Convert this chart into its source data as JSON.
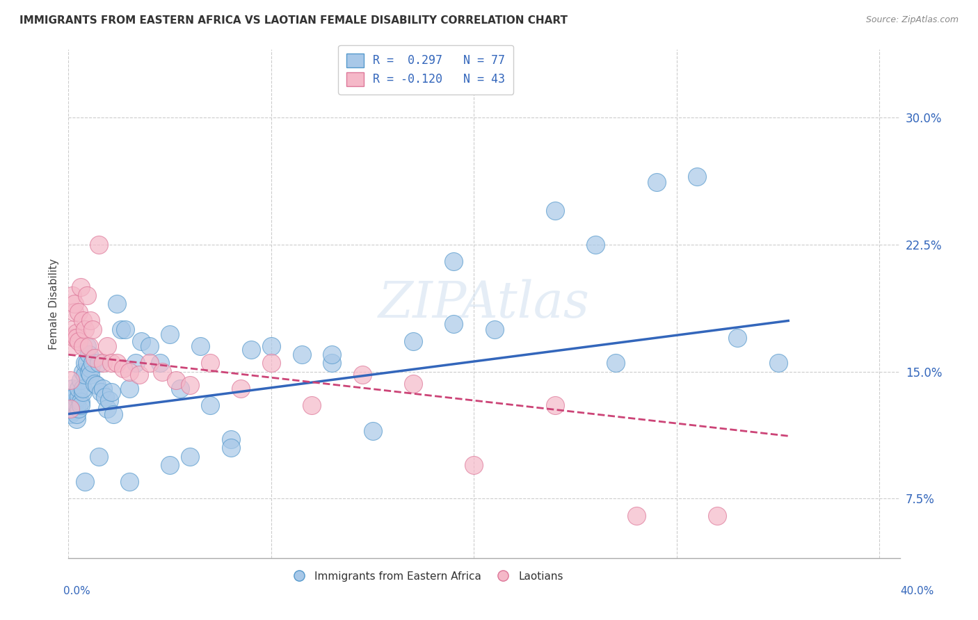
{
  "title": "IMMIGRANTS FROM EASTERN AFRICA VS LAOTIAN FEMALE DISABILITY CORRELATION CHART",
  "source": "Source: ZipAtlas.com",
  "ylabel": "Female Disability",
  "ytick_labels": [
    "7.5%",
    "15.0%",
    "22.5%",
    "30.0%"
  ],
  "ytick_values": [
    0.075,
    0.15,
    0.225,
    0.3
  ],
  "xlim": [
    0.0,
    0.41
  ],
  "ylim": [
    0.04,
    0.34
  ],
  "blue_color": "#a8c8e8",
  "blue_edge_color": "#5599cc",
  "blue_line_color": "#3366bb",
  "pink_color": "#f5b8c8",
  "pink_edge_color": "#dd7799",
  "pink_line_color": "#cc4477",
  "legend_blue_R": "0.297",
  "legend_blue_N": "77",
  "legend_pink_R": "-0.120",
  "legend_pink_N": "43",
  "watermark": "ZIPAtlas",
  "blue_scatter_x": [
    0.001,
    0.001,
    0.002,
    0.002,
    0.002,
    0.003,
    0.003,
    0.003,
    0.003,
    0.004,
    0.004,
    0.004,
    0.004,
    0.005,
    0.005,
    0.005,
    0.006,
    0.006,
    0.006,
    0.007,
    0.007,
    0.007,
    0.008,
    0.008,
    0.009,
    0.009,
    0.01,
    0.01,
    0.011,
    0.011,
    0.012,
    0.013,
    0.014,
    0.015,
    0.016,
    0.017,
    0.018,
    0.019,
    0.02,
    0.021,
    0.022,
    0.024,
    0.026,
    0.028,
    0.03,
    0.033,
    0.036,
    0.04,
    0.045,
    0.05,
    0.055,
    0.06,
    0.065,
    0.07,
    0.08,
    0.09,
    0.1,
    0.115,
    0.13,
    0.15,
    0.17,
    0.19,
    0.21,
    0.24,
    0.26,
    0.29,
    0.31,
    0.33,
    0.35,
    0.27,
    0.19,
    0.13,
    0.08,
    0.05,
    0.03,
    0.015,
    0.008
  ],
  "blue_scatter_y": [
    0.13,
    0.125,
    0.135,
    0.128,
    0.14,
    0.132,
    0.127,
    0.13,
    0.135,
    0.128,
    0.122,
    0.13,
    0.125,
    0.135,
    0.14,
    0.128,
    0.132,
    0.145,
    0.13,
    0.138,
    0.15,
    0.14,
    0.148,
    0.155,
    0.165,
    0.155,
    0.16,
    0.15,
    0.152,
    0.148,
    0.155,
    0.143,
    0.142,
    0.155,
    0.138,
    0.14,
    0.135,
    0.128,
    0.133,
    0.138,
    0.125,
    0.19,
    0.175,
    0.175,
    0.14,
    0.155,
    0.168,
    0.165,
    0.155,
    0.172,
    0.14,
    0.1,
    0.165,
    0.13,
    0.11,
    0.163,
    0.165,
    0.16,
    0.155,
    0.115,
    0.168,
    0.178,
    0.175,
    0.245,
    0.225,
    0.262,
    0.265,
    0.17,
    0.155,
    0.155,
    0.215,
    0.16,
    0.105,
    0.095,
    0.085,
    0.1,
    0.085
  ],
  "pink_scatter_x": [
    0.001,
    0.001,
    0.002,
    0.002,
    0.002,
    0.003,
    0.003,
    0.003,
    0.004,
    0.004,
    0.005,
    0.005,
    0.006,
    0.007,
    0.007,
    0.008,
    0.009,
    0.01,
    0.011,
    0.012,
    0.013,
    0.015,
    0.017,
    0.019,
    0.021,
    0.024,
    0.027,
    0.03,
    0.035,
    0.04,
    0.046,
    0.053,
    0.06,
    0.07,
    0.085,
    0.1,
    0.12,
    0.145,
    0.17,
    0.2,
    0.24,
    0.28,
    0.32
  ],
  "pink_scatter_y": [
    0.128,
    0.145,
    0.175,
    0.165,
    0.195,
    0.185,
    0.17,
    0.19,
    0.173,
    0.17,
    0.185,
    0.168,
    0.2,
    0.165,
    0.18,
    0.175,
    0.195,
    0.165,
    0.18,
    0.175,
    0.158,
    0.225,
    0.155,
    0.165,
    0.155,
    0.155,
    0.152,
    0.15,
    0.148,
    0.155,
    0.15,
    0.145,
    0.142,
    0.155,
    0.14,
    0.155,
    0.13,
    0.148,
    0.143,
    0.095,
    0.13,
    0.065,
    0.065
  ],
  "blue_line_x": [
    0.0,
    0.355
  ],
  "blue_line_y": [
    0.125,
    0.18
  ],
  "pink_line_x": [
    0.0,
    0.355
  ],
  "pink_line_y": [
    0.16,
    0.112
  ],
  "xtick_pos": [
    0.0,
    0.4
  ],
  "xtick_labels": [
    "0.0%",
    "40.0%"
  ]
}
